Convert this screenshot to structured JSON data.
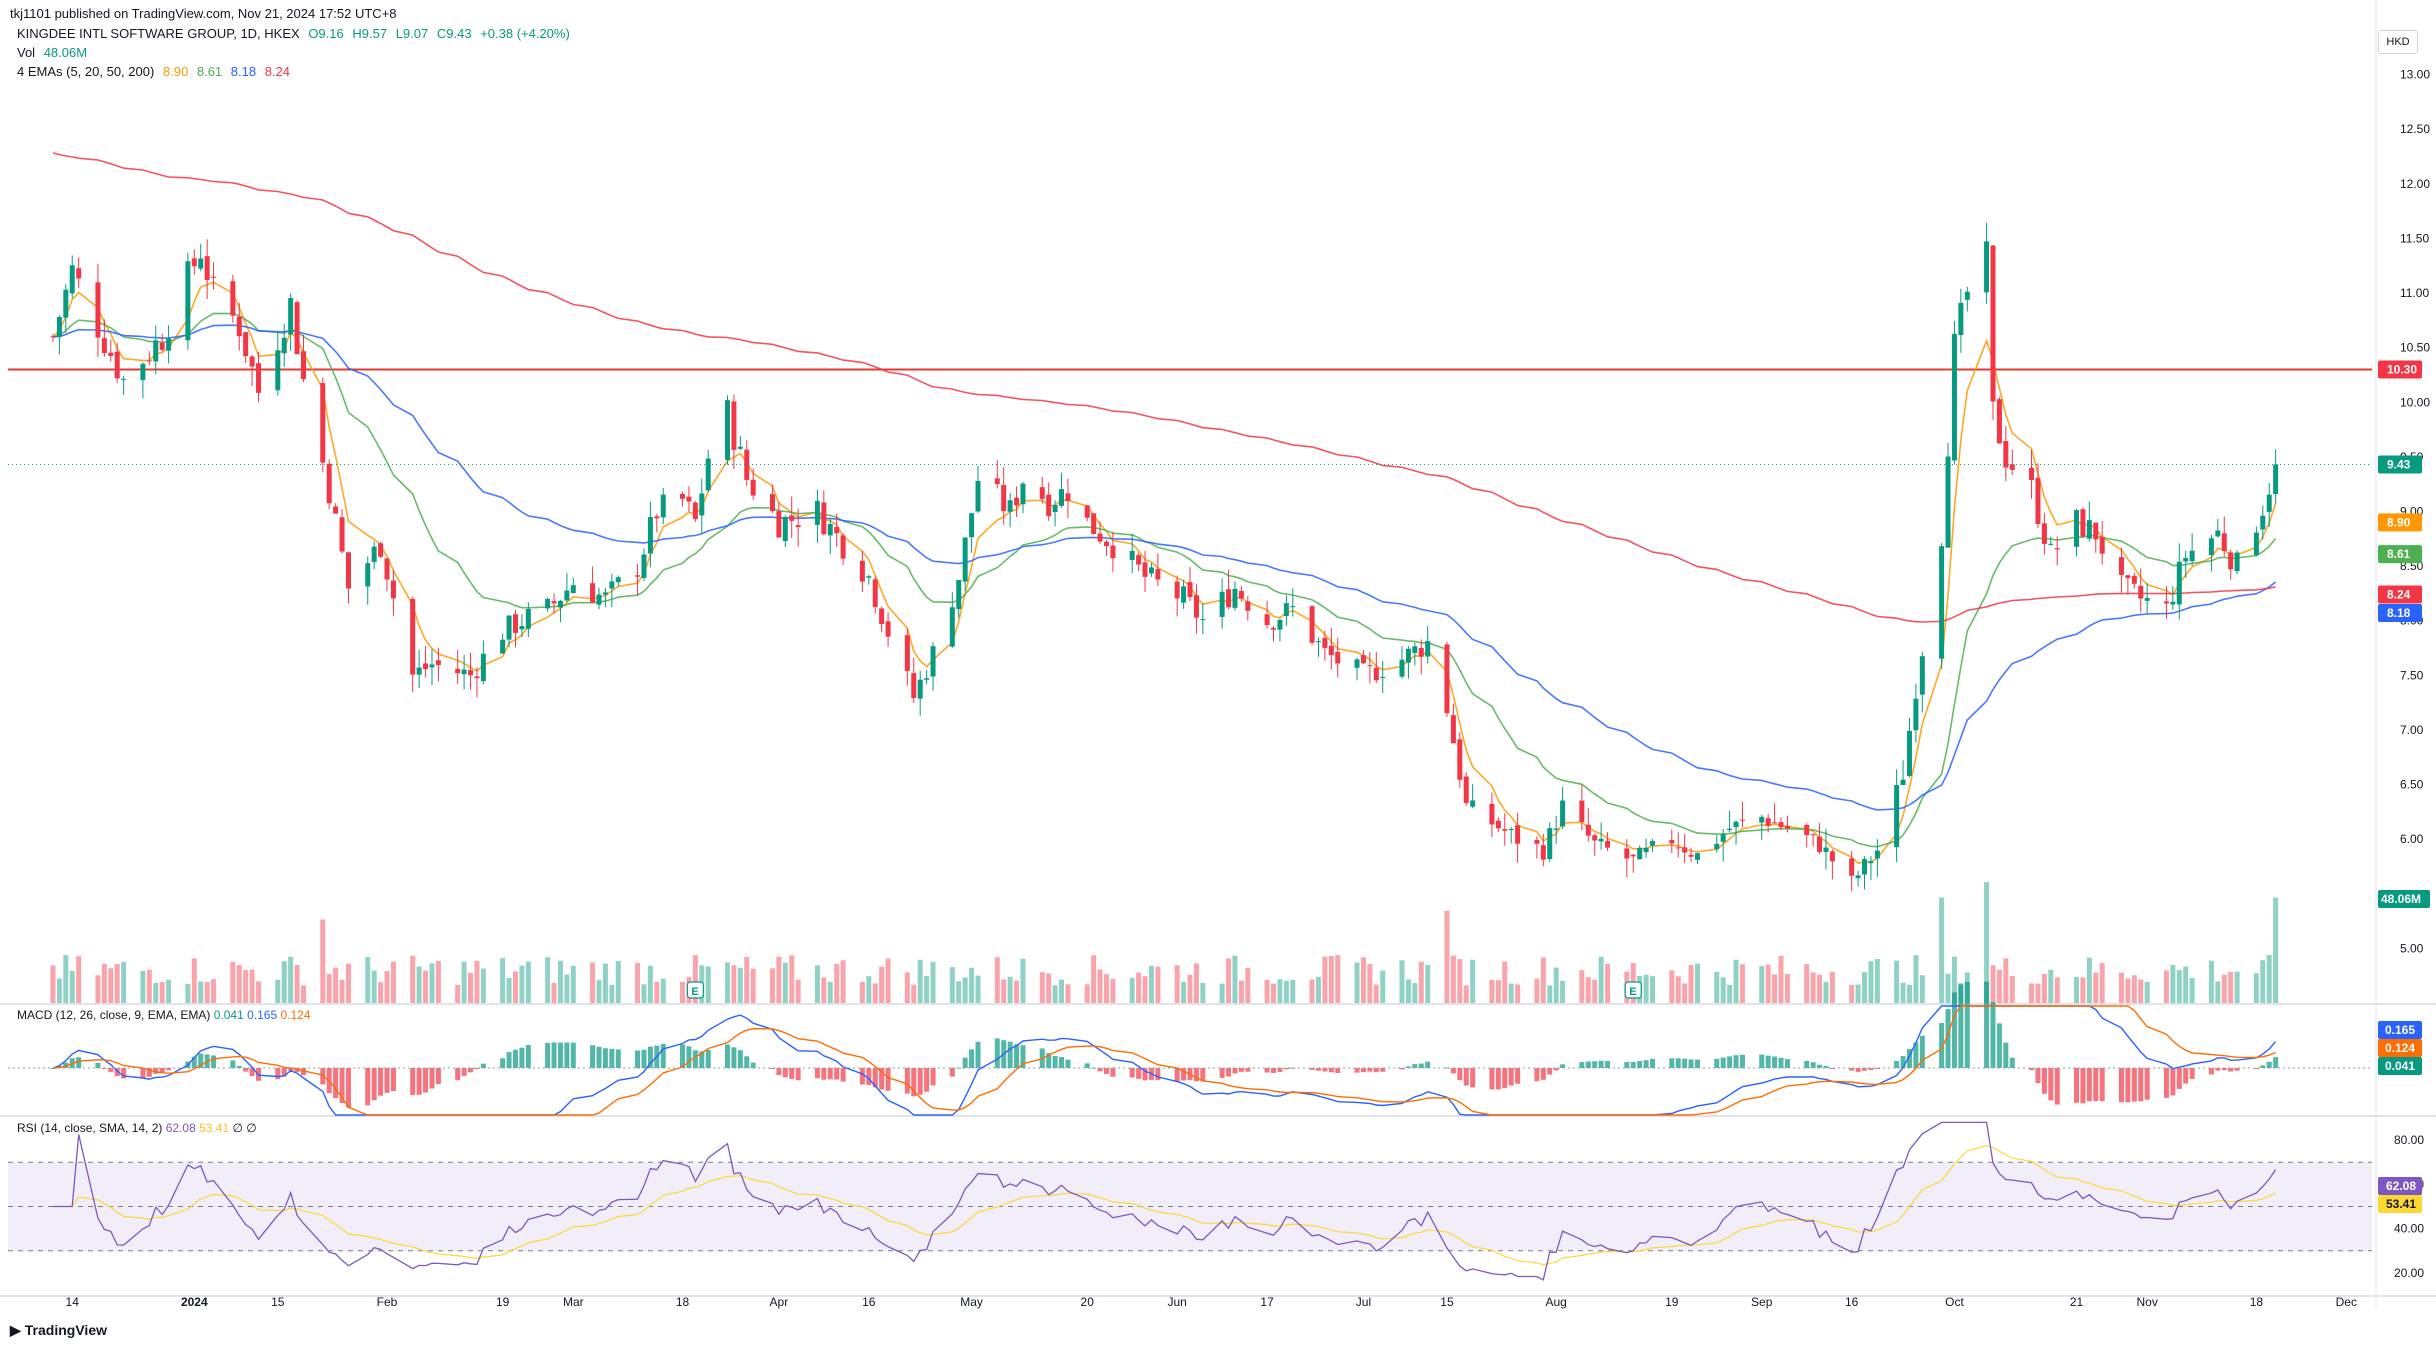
{
  "publisher_line": "tkj1101 published on TradingView.com, Nov 21, 2024 17:52 UTC+8",
  "header": {
    "symbol": "KINGDEE INTL SOFTWARE GROUP, 1D, HKEX",
    "open": "O9.16",
    "high": "H9.57",
    "low": "L9.07",
    "close": "C9.43",
    "change": "+0.38 (+4.20%)",
    "vol_label": "Vol",
    "vol_value": "48.06M",
    "ema_label": "4 EMAs (5, 20, 50, 200)",
    "ema_values": [
      "8.90",
      "8.61",
      "8.18",
      "8.24"
    ]
  },
  "currency": "HKD",
  "macd_label": "MACD (12, 26, close, 9, EMA, EMA)",
  "macd_values": [
    "0.041",
    "0.165",
    "0.124"
  ],
  "rsi_label": "RSI (14, close, SMA, 14, 2)",
  "rsi_values": [
    "62.08",
    "53.41",
    "∅",
    "∅"
  ],
  "footer_logo": "TradingView",
  "colors": {
    "up": "#089981",
    "down": "#f23645",
    "ema5": "#ff9800",
    "ema20": "#4caf50",
    "ema50": "#2962ff",
    "ema200": "#f23645",
    "resistance": "#e53935",
    "macd_line": "#2962ff",
    "signal_line": "#ff6d00",
    "rsi_line": "#7e57c2",
    "rsi_ma": "#fdd835"
  },
  "chart_data": {
    "type": "candlestick",
    "price_axis": {
      "ticks": [
        "13.00",
        "12.50",
        "12.00",
        "11.50",
        "11.00",
        "10.50",
        "10.00",
        "9.50",
        "9.00",
        "8.50",
        "8.00",
        "7.50",
        "7.00",
        "6.50",
        "6.00",
        "5.00"
      ],
      "range": [
        4.5,
        13.5
      ],
      "labels": [
        {
          "text": "10.30",
          "value": 10.3,
          "color": "#f23645"
        },
        {
          "text": "9.43",
          "value": 9.43,
          "color": "#089981"
        },
        {
          "text": "8.90",
          "value": 8.9,
          "color": "#ff9800"
        },
        {
          "text": "8.61",
          "value": 8.61,
          "color": "#4caf50"
        },
        {
          "text": "8.24",
          "value": 8.24,
          "color": "#f23645"
        },
        {
          "text": "8.18",
          "value": 8.18,
          "color": "#2962ff"
        }
      ],
      "volume_label": "48.06M"
    },
    "x_axis": {
      "ticks": [
        {
          "label": "14",
          "date": "2023-12-14"
        },
        {
          "label": "2024",
          "date": "2024-01-02"
        },
        {
          "label": "15",
          "date": "2024-01-15"
        },
        {
          "label": "Feb",
          "date": "2024-02-01"
        },
        {
          "label": "19",
          "date": "2024-02-19"
        },
        {
          "label": "Mar",
          "date": "2024-03-01"
        },
        {
          "label": "18",
          "date": "2024-03-18"
        },
        {
          "label": "Apr",
          "date": "2024-04-02"
        },
        {
          "label": "16",
          "date": "2024-04-16"
        },
        {
          "label": "May",
          "date": "2024-05-02"
        },
        {
          "label": "20",
          "date": "2024-05-20"
        },
        {
          "label": "Jun",
          "date": "2024-06-03"
        },
        {
          "label": "17",
          "date": "2024-06-17"
        },
        {
          "label": "Jul",
          "date": "2024-07-02"
        },
        {
          "label": "15",
          "date": "2024-07-15"
        },
        {
          "label": "Aug",
          "date": "2024-08-01"
        },
        {
          "label": "19",
          "date": "2024-08-19"
        },
        {
          "label": "Sep",
          "date": "2024-09-02"
        },
        {
          "label": "16",
          "date": "2024-09-16"
        },
        {
          "label": "Oct",
          "date": "2024-10-02"
        },
        {
          "label": "21",
          "date": "2024-10-21"
        },
        {
          "label": "Nov",
          "date": "2024-11-01"
        },
        {
          "label": "18",
          "date": "2024-11-18"
        },
        {
          "label": "Dec",
          "date": "2024-12-02"
        }
      ]
    },
    "resistance": 10.3,
    "close_anchors": [
      [
        "2023-12-11",
        10.6
      ],
      [
        "2023-12-14",
        11.2
      ],
      [
        "2023-12-18",
        10.7
      ],
      [
        "2023-12-22",
        10.2
      ],
      [
        "2023-12-28",
        10.6
      ],
      [
        "2024-01-03",
        11.4
      ],
      [
        "2024-01-05",
        11.0
      ],
      [
        "2024-01-09",
        10.7
      ],
      [
        "2024-01-12",
        10.1
      ],
      [
        "2024-01-15",
        10.6
      ],
      [
        "2024-01-17",
        10.9
      ],
      [
        "2024-01-19",
        10.2
      ],
      [
        "2024-01-23",
        9.2
      ],
      [
        "2024-01-26",
        8.3
      ],
      [
        "2024-01-31",
        8.7
      ],
      [
        "2024-02-05",
        7.5
      ],
      [
        "2024-02-08",
        7.6
      ],
      [
        "2024-02-14",
        7.5
      ],
      [
        "2024-02-19",
        7.9
      ],
      [
        "2024-02-22",
        8.0
      ],
      [
        "2024-02-26",
        8.1
      ],
      [
        "2024-03-01",
        8.35
      ],
      [
        "2024-03-06",
        8.2
      ],
      [
        "2024-03-11",
        8.5
      ],
      [
        "2024-03-14",
        9.0
      ],
      [
        "2024-03-18",
        9.1
      ],
      [
        "2024-03-20",
        8.9
      ],
      [
        "2024-03-22",
        9.5
      ],
      [
        "2024-03-25",
        9.9
      ],
      [
        "2024-03-28",
        9.3
      ],
      [
        "2024-04-02",
        8.9
      ],
      [
        "2024-04-08",
        9.0
      ],
      [
        "2024-04-12",
        8.7
      ],
      [
        "2024-04-16",
        8.4
      ],
      [
        "2024-04-19",
        7.9
      ],
      [
        "2024-04-23",
        7.3
      ],
      [
        "2024-04-26",
        7.7
      ],
      [
        "2024-04-30",
        8.4
      ],
      [
        "2024-05-03",
        9.3
      ],
      [
        "2024-05-08",
        9.0
      ],
      [
        "2024-05-10",
        9.3
      ],
      [
        "2024-05-14",
        9.1
      ],
      [
        "2024-05-17",
        9.2
      ],
      [
        "2024-05-20",
        8.9
      ],
      [
        "2024-05-24",
        8.7
      ],
      [
        "2024-05-29",
        8.4
      ],
      [
        "2024-06-04",
        8.2
      ],
      [
        "2024-06-07",
        8.0
      ],
      [
        "2024-06-12",
        8.3
      ],
      [
        "2024-06-17",
        8.0
      ],
      [
        "2024-06-21",
        8.1
      ],
      [
        "2024-06-26",
        7.7
      ],
      [
        "2024-07-02",
        7.5
      ],
      [
        "2024-07-08",
        7.65
      ],
      [
        "2024-07-12",
        7.8
      ],
      [
        "2024-07-15",
        7.2
      ],
      [
        "2024-07-18",
        6.3
      ],
      [
        "2024-07-22",
        6.15
      ],
      [
        "2024-07-26",
        6.0
      ],
      [
        "2024-07-30",
        5.9
      ],
      [
        "2024-08-02",
        6.3
      ],
      [
        "2024-08-07",
        5.95
      ],
      [
        "2024-08-13",
        5.8
      ],
      [
        "2024-08-19",
        6.0
      ],
      [
        "2024-08-23",
        5.85
      ],
      [
        "2024-08-28",
        6.1
      ],
      [
        "2024-09-02",
        6.2
      ],
      [
        "2024-09-06",
        6.1
      ],
      [
        "2024-09-11",
        5.95
      ],
      [
        "2024-09-16",
        5.6
      ],
      [
        "2024-09-20",
        5.9
      ],
      [
        "2024-09-24",
        6.6
      ],
      [
        "2024-09-26",
        7.4
      ],
      [
        "2024-09-30",
        8.8
      ],
      [
        "2024-10-02",
        10.5
      ],
      [
        "2024-10-04",
        11.0
      ],
      [
        "2024-10-07",
        11.3
      ],
      [
        "2024-10-08",
        9.9
      ],
      [
        "2024-10-10",
        9.5
      ],
      [
        "2024-10-14",
        9.2
      ],
      [
        "2024-10-17",
        8.6
      ],
      [
        "2024-10-21",
        8.9
      ],
      [
        "2024-10-24",
        8.8
      ],
      [
        "2024-10-28",
        8.3
      ],
      [
        "2024-10-31",
        8.2
      ],
      [
        "2024-11-04",
        8.1
      ],
      [
        "2024-11-07",
        8.6
      ],
      [
        "2024-11-12",
        8.8
      ],
      [
        "2024-11-15",
        8.5
      ],
      [
        "2024-11-19",
        9.05
      ],
      [
        "2024-11-21",
        9.43
      ]
    ],
    "ema_series": [
      {
        "name": "EMA 5",
        "period": 5,
        "color": "#ff9800"
      },
      {
        "name": "EMA 20",
        "period": 20,
        "color": "#4caf50"
      },
      {
        "name": "EMA 50",
        "period": 50,
        "color": "#2962ff"
      },
      {
        "name": "EMA 200",
        "period": 200,
        "color": "#f23645",
        "seed": 12.3
      }
    ],
    "volume_peaks": [
      [
        "2024-01-22",
        3.8
      ],
      [
        "2024-07-15",
        4.2
      ],
      [
        "2024-09-30",
        4.8
      ],
      [
        "2024-10-07",
        5.5
      ],
      [
        "2024-11-21",
        4.8
      ]
    ],
    "macd_axis": [
      "0.165",
      "0.124",
      "0.041"
    ],
    "rsi_axis": {
      "ticks": [
        "80.00",
        "60.00",
        "40.00",
        "20.00"
      ],
      "range": [
        10,
        90
      ],
      "bands": [
        70,
        50,
        30
      ],
      "labels": [
        "62.08",
        "53.41"
      ]
    }
  }
}
